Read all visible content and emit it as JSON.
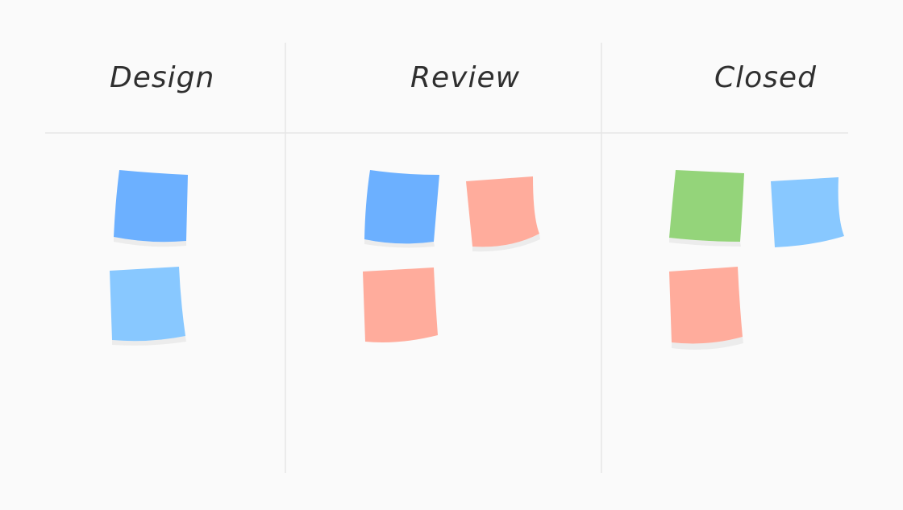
{
  "board": {
    "columns": [
      {
        "title": "Design",
        "notes": [
          {
            "color": "#6cb0ff"
          },
          {
            "color": "#88c8ff"
          }
        ]
      },
      {
        "title": "Review",
        "notes": [
          {
            "color": "#6cb0ff"
          },
          {
            "color": "#ffac9c"
          },
          {
            "color": "#ffac9c"
          }
        ]
      },
      {
        "title": "Closed",
        "notes": [
          {
            "color": "#94d47a"
          },
          {
            "color": "#88c8ff"
          },
          {
            "color": "#ffac9c"
          }
        ]
      }
    ]
  },
  "colors": {
    "background": "#fafafa",
    "divider": "#e6e6e6",
    "shadow": "#ececec"
  }
}
